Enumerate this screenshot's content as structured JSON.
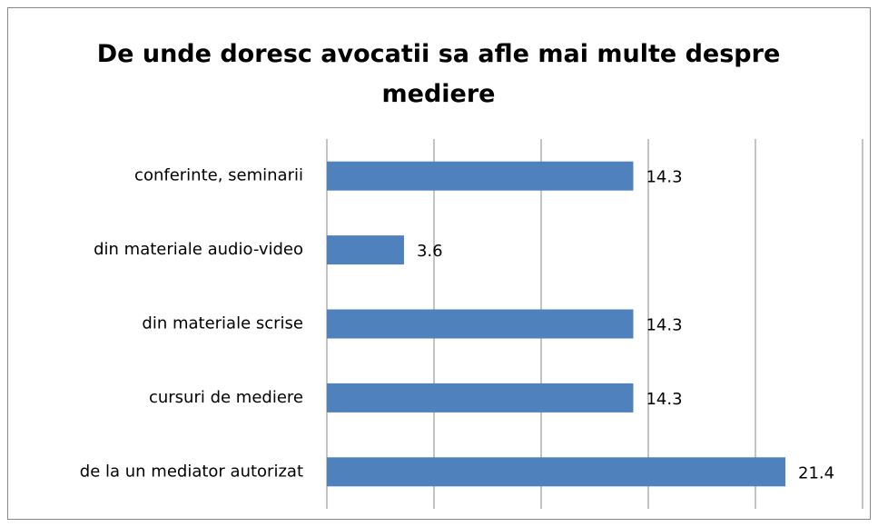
{
  "chart_data": {
    "type": "bar",
    "orientation": "horizontal",
    "title": "De unde doresc avocatii sa afle mai multe despre mediere",
    "categories": [
      "conferinte, seminarii",
      "din materiale audio-video",
      "din materiale scrise",
      "cursuri de mediere",
      "de la un mediator autorizat"
    ],
    "values": [
      14.3,
      3.6,
      14.3,
      14.3,
      21.4
    ],
    "color": "#4f81bd",
    "xlim": [
      0,
      25
    ],
    "xticks": [
      0,
      5,
      10,
      15,
      20,
      25
    ],
    "grid": true
  }
}
